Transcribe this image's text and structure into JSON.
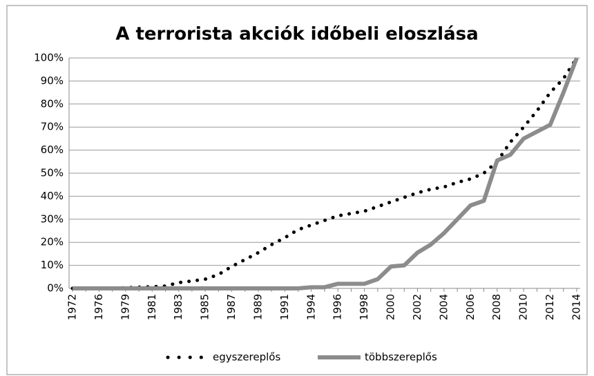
{
  "chart_data": {
    "type": "line",
    "title": "A terrorista akciók időbeli eloszlása",
    "categories": [
      "1972",
      null,
      "1976",
      null,
      "1979",
      null,
      "1981",
      null,
      "1983",
      null,
      "1985",
      null,
      "1987",
      null,
      "1989",
      null,
      "1991",
      null,
      "1994",
      null,
      "1996",
      null,
      "1998",
      null,
      "2000",
      null,
      "2002",
      null,
      "2004",
      null,
      "2006",
      null,
      "2008",
      null,
      "2010",
      null,
      "2012",
      null,
      "2014"
    ],
    "series": [
      {
        "name": "egyszereplős",
        "color": "#000000",
        "style": "dotted",
        "values": [
          0,
          0,
          0,
          0,
          0.3,
          0.5,
          0.7,
          1,
          2.5,
          3.2,
          4,
          6,
          9.5,
          12.5,
          15.5,
          19,
          22,
          25.5,
          27.5,
          29.5,
          31.5,
          32.5,
          33.5,
          35.5,
          37.5,
          39.5,
          41.5,
          43,
          44,
          46,
          47.5,
          50,
          55,
          63.5,
          70,
          77,
          85,
          91,
          100
        ]
      },
      {
        "name": "többszereplős",
        "color": "#8c8c8c",
        "style": "solid",
        "values": [
          0,
          0,
          0,
          0,
          0,
          0,
          0,
          0,
          0,
          0,
          0,
          0,
          0,
          0,
          0,
          0,
          0,
          0,
          0.5,
          0.5,
          2,
          2,
          2,
          4,
          9.5,
          10,
          15.5,
          19,
          24,
          30,
          36,
          38,
          55.5,
          58,
          65,
          68,
          71,
          85,
          100
        ]
      }
    ],
    "ylim": [
      0,
      100
    ],
    "yticks": [
      {
        "value": 0,
        "label": "0%"
      },
      {
        "value": 10,
        "label": "10%"
      },
      {
        "value": 20,
        "label": "20%"
      },
      {
        "value": 30,
        "label": "30%"
      },
      {
        "value": 40,
        "label": "40%"
      },
      {
        "value": 50,
        "label": "50%"
      },
      {
        "value": 60,
        "label": "60%"
      },
      {
        "value": 70,
        "label": "70%"
      },
      {
        "value": 80,
        "label": "80%"
      },
      {
        "value": 90,
        "label": "90%"
      },
      {
        "value": 100,
        "label": "100%"
      }
    ],
    "grid": true,
    "legend": "bottom"
  }
}
